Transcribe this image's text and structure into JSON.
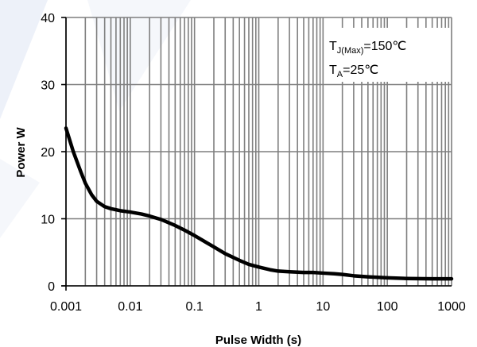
{
  "chart_data": {
    "type": "line",
    "xscale": "log",
    "xlim": [
      0.001,
      1000
    ],
    "ylim": [
      0,
      40
    ],
    "xticks": [
      0.001,
      0.01,
      0.1,
      1,
      10,
      100,
      1000
    ],
    "xtick_labels": [
      "0.001",
      "0.01",
      "0.1",
      "1",
      "10",
      "100",
      "1000"
    ],
    "yticks": [
      0,
      10,
      20,
      30,
      40
    ],
    "ytick_labels": [
      "0",
      "10",
      "20",
      "30",
      "40"
    ],
    "xlabel": "Pulse Width (s)",
    "ylabel": "Power W",
    "grid": true,
    "annotations": [
      {
        "main": "T",
        "sub": "J(Max)",
        "rest": "=150℃"
      },
      {
        "main": "T",
        "sub": "A",
        "rest": "=25℃"
      }
    ],
    "annotation_placement": "top-right",
    "series": [
      {
        "color": "#000000",
        "x": [
          0.001,
          0.0013,
          0.0017,
          0.002,
          0.0025,
          0.003,
          0.004,
          0.005,
          0.007,
          0.01,
          0.015,
          0.02,
          0.03,
          0.05,
          0.07,
          0.1,
          0.15,
          0.2,
          0.3,
          0.5,
          0.7,
          1,
          1.5,
          2,
          3,
          5,
          7,
          10,
          15,
          20,
          30,
          50,
          100,
          200,
          500,
          1000
        ],
        "y": [
          23.5,
          20.0,
          17.0,
          15.3,
          13.6,
          12.6,
          11.8,
          11.5,
          11.2,
          11.0,
          10.7,
          10.4,
          9.9,
          9.0,
          8.3,
          7.5,
          6.5,
          5.8,
          4.8,
          3.8,
          3.2,
          2.8,
          2.4,
          2.2,
          2.1,
          2.0,
          2.0,
          1.9,
          1.8,
          1.7,
          1.5,
          1.35,
          1.2,
          1.1,
          1.05,
          1.05
        ]
      }
    ]
  },
  "colors": {
    "background": "#ffffff",
    "grid": "#7f7f7f",
    "line": "#000000",
    "watermark": "#e9eef7"
  }
}
